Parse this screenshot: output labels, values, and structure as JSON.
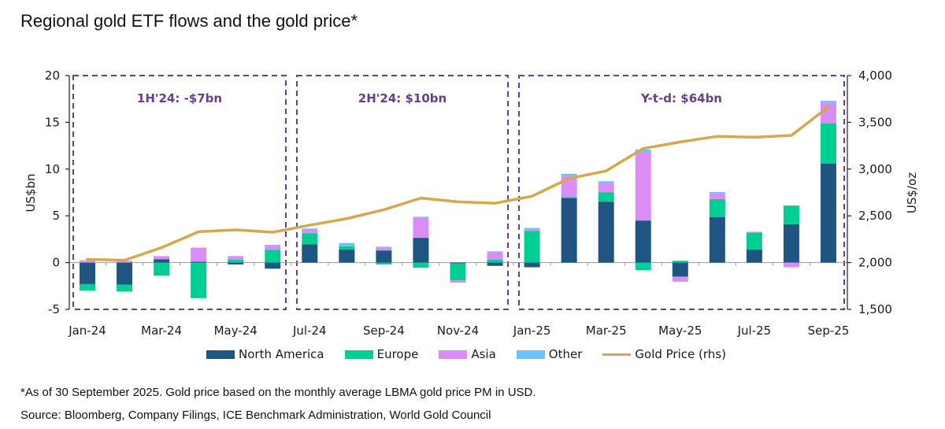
{
  "title": "Regional gold ETF flows and the gold price*",
  "footnote": "*As of 30 September 2025. Gold price based on the monthly average LBMA gold price PM in USD.",
  "source": "Source: Bloomberg, Company Filings, ICE Benchmark Administration, World Gold Council",
  "colors": {
    "north_america": "#1f5582",
    "europe": "#00cf94",
    "asia": "#dc8cf7",
    "other": "#6cc3f5",
    "gold_price": "#d6a84c",
    "annotation": "#6b3d8c",
    "axis": "#222222",
    "zero_line": "#9a9a9a"
  },
  "chart_data": {
    "type": "bar",
    "stacked": true,
    "title": "Regional gold ETF flows and the gold price*",
    "xlabel": "",
    "ylabel": "US$bn",
    "y2label": "US$/oz",
    "ylim": [
      -5,
      20
    ],
    "y2lim": [
      1500,
      4000
    ],
    "yticks": [
      "-5",
      "0",
      "5",
      "10",
      "15",
      "20"
    ],
    "y2ticks": [
      "1,500",
      "2,000",
      "2,500",
      "3,000",
      "3,500",
      "4,000"
    ],
    "yticks_values": [
      -5,
      0,
      5,
      10,
      15,
      20
    ],
    "y2ticks_values": [
      1500,
      2000,
      2500,
      3000,
      3500,
      4000
    ],
    "categories": [
      "Jan-24",
      "Feb-24",
      "Mar-24",
      "Apr-24",
      "May-24",
      "Jun-24",
      "Jul-24",
      "Aug-24",
      "Sep-24",
      "Oct-24",
      "Nov-24",
      "Dec-24",
      "Jan-25",
      "Feb-25",
      "Mar-25",
      "Apr-25",
      "May-25",
      "Jun-25",
      "Jul-25",
      "Aug-25",
      "Sep-25"
    ],
    "xtick_labels": [
      "Jan-24",
      "Mar-24",
      "May-24",
      "Jul-24",
      "Sep-24",
      "Nov-24",
      "Jan-25",
      "Mar-25",
      "May-25",
      "Jul-25",
      "Sep-25"
    ],
    "grid": false,
    "legend_position": "bottom",
    "series": [
      {
        "name": "North America",
        "key": "north_america",
        "values": [
          -2.3,
          -2.35,
          0.35,
          0.1,
          -0.2,
          -0.65,
          1.95,
          1.4,
          1.3,
          2.65,
          -0.1,
          -0.35,
          -0.5,
          6.9,
          6.5,
          4.5,
          -1.5,
          4.85,
          1.4,
          4.1,
          10.6
        ]
      },
      {
        "name": "Europe",
        "key": "europe",
        "values": [
          -0.7,
          -0.75,
          -1.4,
          -3.8,
          0.3,
          1.35,
          1.2,
          0.35,
          -0.2,
          -0.55,
          -1.8,
          0.3,
          3.4,
          0.1,
          1.0,
          -0.8,
          0.2,
          1.95,
          1.8,
          2.0,
          4.3
        ]
      },
      {
        "name": "Asia",
        "key": "asia",
        "values": [
          0.2,
          0.2,
          0.3,
          1.5,
          0.4,
          0.45,
          0.4,
          0.0,
          0.3,
          2.15,
          -0.2,
          0.8,
          0.1,
          2.3,
          1.0,
          7.3,
          -0.5,
          0.6,
          0.1,
          -0.5,
          2.2
        ]
      },
      {
        "name": "Other",
        "key": "other",
        "values": [
          0.05,
          0.0,
          0.05,
          0.0,
          0.0,
          0.1,
          0.1,
          0.35,
          0.1,
          0.1,
          -0.05,
          0.1,
          0.2,
          0.2,
          0.2,
          0.3,
          -0.05,
          0.15,
          0.0,
          0.0,
          0.2
        ]
      }
    ],
    "line_series": {
      "name": "Gold Price (rhs)",
      "axis": "right",
      "values": [
        2035,
        2025,
        2160,
        2330,
        2350,
        2325,
        2400,
        2470,
        2565,
        2690,
        2650,
        2635,
        2710,
        2900,
        2980,
        3220,
        3290,
        3350,
        3340,
        3360,
        3665
      ]
    },
    "annotations": [
      {
        "label": "1H'24: -$7bn",
        "from": "Jan-24",
        "to": "Jun-24"
      },
      {
        "label": "2H'24: $10bn",
        "from": "Jul-24",
        "to": "Dec-24"
      },
      {
        "label": "Y-t-d: $64bn",
        "from": "Jan-25",
        "to": "Sep-25"
      }
    ]
  },
  "legend": [
    {
      "label": "North America",
      "key": "north_america",
      "kind": "bar"
    },
    {
      "label": "Europe",
      "key": "europe",
      "kind": "bar"
    },
    {
      "label": "Asia",
      "key": "asia",
      "kind": "bar"
    },
    {
      "label": "Other",
      "key": "other",
      "kind": "bar"
    },
    {
      "label": "Gold Price (rhs)",
      "key": "gold_price",
      "kind": "line"
    }
  ]
}
